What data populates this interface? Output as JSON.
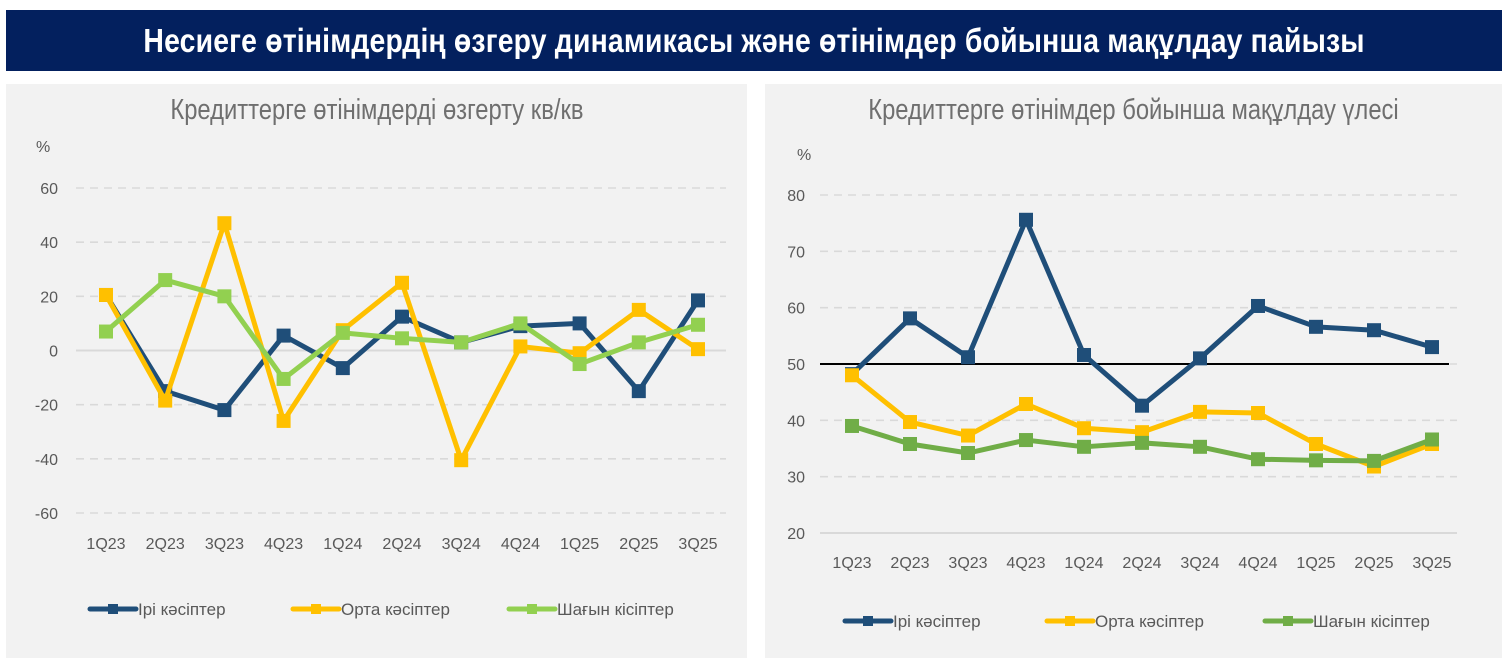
{
  "banner": {
    "title": "Несиеге өтінімдердің өзгеру динамикасы және өтінімдер бойынша мақұлдау пайызы"
  },
  "chart_data": [
    {
      "type": "line",
      "title": "Кредиттерге өтінімдерді өзгерту кв/кв",
      "ylabel": "%",
      "xlabel": "",
      "ylim": [
        -60,
        60
      ],
      "yticks": [
        60,
        40,
        20,
        0,
        -20,
        -40,
        -60
      ],
      "grid": true,
      "legend": "bottom",
      "categories": [
        "1Q23",
        "2Q23",
        "3Q23",
        "4Q23",
        "1Q24",
        "2Q24",
        "3Q24",
        "4Q24",
        "1Q25",
        "2Q25",
        "3Q25"
      ],
      "series": [
        {
          "name": "Ірі кәсіптер",
          "color": "#1f4e79",
          "values": [
            20.5,
            -15,
            -22,
            5.5,
            -6.5,
            12.5,
            3,
            9,
            10,
            -15,
            18.5
          ]
        },
        {
          "name": "Орта кәсіптер",
          "color": "#ffc000",
          "values": [
            20.5,
            -18.5,
            47,
            -26,
            7.5,
            25,
            -40.5,
            1.5,
            -1,
            15,
            0.5
          ]
        },
        {
          "name": "Шағын кісіптер",
          "color": "#92d050",
          "values": [
            7,
            26,
            20,
            -10.5,
            6.5,
            4.5,
            3,
            10,
            -5,
            3,
            9.5
          ]
        }
      ]
    },
    {
      "type": "line",
      "title": "Кредиттерге өтінімдер бойынша мақұлдау үлесі",
      "ylabel": "%",
      "xlabel": "",
      "ylim": [
        20,
        80
      ],
      "yticks": [
        80,
        70,
        60,
        50,
        40,
        30,
        20
      ],
      "reference_line": 50,
      "grid": true,
      "legend": "bottom",
      "categories": [
        "1Q23",
        "2Q23",
        "3Q23",
        "4Q23",
        "1Q24",
        "2Q24",
        "3Q24",
        "4Q24",
        "1Q25",
        "2Q25",
        "3Q25"
      ],
      "series": [
        {
          "name": "Ірі кәсіптер",
          "color": "#1f4e79",
          "values": [
            48.2,
            58.1,
            51.2,
            75.6,
            51.6,
            42.6,
            51.0,
            60.3,
            56.6,
            56.0,
            53.0
          ]
        },
        {
          "name": "Орта кәсіптер",
          "color": "#ffc000",
          "values": [
            48.0,
            39.7,
            37.3,
            42.9,
            38.6,
            37.9,
            41.5,
            41.3,
            35.8,
            31.8,
            35.8
          ]
        },
        {
          "name": "Шағын кісіптер",
          "color": "#70ad47",
          "values": [
            39.0,
            35.8,
            34.2,
            36.5,
            35.3,
            36.0,
            35.3,
            33.1,
            32.9,
            32.8,
            36.6
          ]
        }
      ]
    }
  ]
}
